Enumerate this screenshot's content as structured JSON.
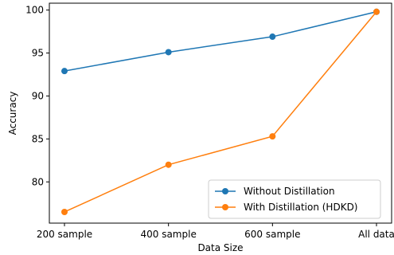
{
  "chart_data": {
    "type": "line",
    "title": "",
    "xlabel": "Data Size",
    "ylabel": "Accuracy",
    "categories": [
      "200 sample",
      "400 sample",
      "600 sample",
      "All data"
    ],
    "ylim": [
      75.2,
      100.8
    ],
    "yticks": [
      80,
      85,
      90,
      95,
      100
    ],
    "grid": false,
    "legend_position": "bottom-right",
    "series": [
      {
        "name": "Without Distillation",
        "color": "#1f77b4",
        "marker": "circle",
        "values": [
          92.9,
          95.1,
          96.9,
          99.8
        ]
      },
      {
        "name": "With Distillation (HDKD)",
        "color": "#ff7f0e",
        "marker": "circle",
        "values": [
          76.5,
          82.0,
          85.3,
          99.8
        ]
      }
    ]
  }
}
